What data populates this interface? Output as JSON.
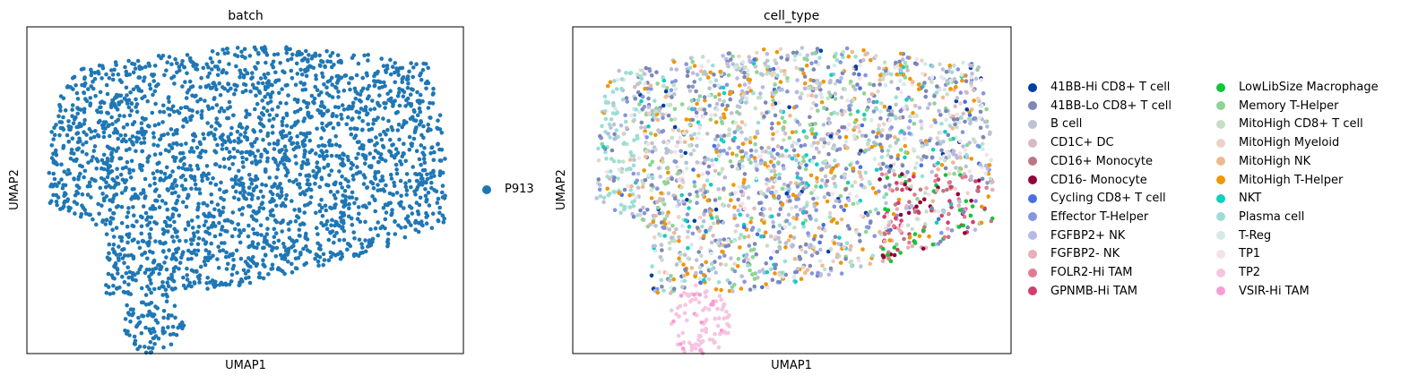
{
  "chart_data": [
    {
      "type": "scatter",
      "title": "batch",
      "xlabel": "UMAP1",
      "ylabel": "UMAP2",
      "grid": false,
      "ticks": false,
      "legend_position": "right",
      "series": [
        {
          "name": "P913",
          "color": "#1f77b4"
        }
      ]
    },
    {
      "type": "scatter",
      "title": "cell_type",
      "xlabel": "UMAP1",
      "ylabel": "UMAP2",
      "grid": false,
      "ticks": false,
      "legend_position": "right",
      "series": [
        {
          "name": "41BB-Hi CD8+ T cell",
          "color": "#023fa5"
        },
        {
          "name": "41BB-Lo CD8+ T cell",
          "color": "#7d87b9"
        },
        {
          "name": "B cell",
          "color": "#bec1d4"
        },
        {
          "name": "CD1C+ DC",
          "color": "#d6bcc0"
        },
        {
          "name": "CD16+ Monocyte",
          "color": "#bb7784"
        },
        {
          "name": "CD16- Monocyte",
          "color": "#8e063b"
        },
        {
          "name": "Cycling CD8+ T cell",
          "color": "#4a6fe3"
        },
        {
          "name": "Effector T-Helper",
          "color": "#8595e1"
        },
        {
          "name": "FGFBP2+ NK",
          "color": "#b5bbe3"
        },
        {
          "name": "FGFBP2- NK",
          "color": "#e6afb9"
        },
        {
          "name": "FOLR2-Hi TAM",
          "color": "#e07b91"
        },
        {
          "name": "GPNMB-Hi TAM",
          "color": "#d33f6a"
        },
        {
          "name": "LowLibSize Macrophage",
          "color": "#11c638"
        },
        {
          "name": "Memory T-Helper",
          "color": "#8dd593"
        },
        {
          "name": "MitoHigh CD8+ T cell",
          "color": "#c6dec7"
        },
        {
          "name": "MitoHigh Myeloid",
          "color": "#ead3c6"
        },
        {
          "name": "MitoHigh NK",
          "color": "#f0b98d"
        },
        {
          "name": "MitoHigh T-Helper",
          "color": "#ef9708"
        },
        {
          "name": "NKT",
          "color": "#0fcfc0"
        },
        {
          "name": "Plasma cell",
          "color": "#9cded6"
        },
        {
          "name": "T-Reg",
          "color": "#d5eae7"
        },
        {
          "name": "TP1",
          "color": "#f3e1eb"
        },
        {
          "name": "TP2",
          "color": "#f6c4e1"
        },
        {
          "name": "VSIR-Hi TAM",
          "color": "#f79cd4"
        }
      ]
    }
  ]
}
